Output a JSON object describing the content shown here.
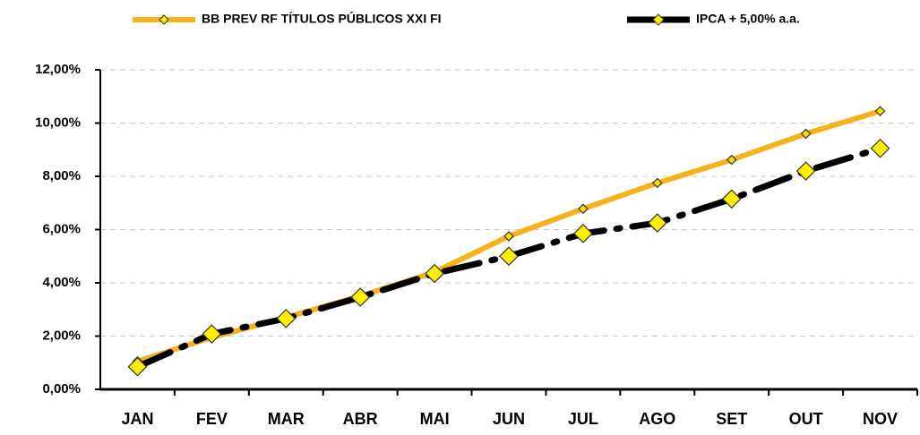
{
  "chart_data": {
    "type": "line",
    "categories": [
      "JAN",
      "FEV",
      "MAR",
      "ABR",
      "MAI",
      "JUN",
      "JUL",
      "AGO",
      "SET",
      "OUT",
      "NOV"
    ],
    "series": [
      {
        "name": "BB PREV RF TÍTULOS PÚBLICOS XXI FI",
        "color": "#f5b21a",
        "values": [
          1.05,
          1.95,
          2.7,
          3.5,
          4.4,
          5.75,
          6.78,
          7.75,
          8.62,
          9.6,
          10.45
        ]
      },
      {
        "name": "IPCA + 5,00% a.a.",
        "color": "#000000",
        "values": [
          0.85,
          2.08,
          2.66,
          3.46,
          4.35,
          5.0,
          5.85,
          6.25,
          7.15,
          8.2,
          9.05
        ]
      }
    ],
    "ylim": [
      0,
      12
    ],
    "yticks": [
      {
        "value": 0,
        "label": "0,00%"
      },
      {
        "value": 2,
        "label": "2,00%"
      },
      {
        "value": 4,
        "label": "4,00%"
      },
      {
        "value": 6,
        "label": "6,00%"
      },
      {
        "value": 8,
        "label": "8,00%"
      },
      {
        "value": 10,
        "label": "10,00%"
      },
      {
        "value": 12,
        "label": "12,00%"
      }
    ],
    "grid": true,
    "legend": "top"
  }
}
